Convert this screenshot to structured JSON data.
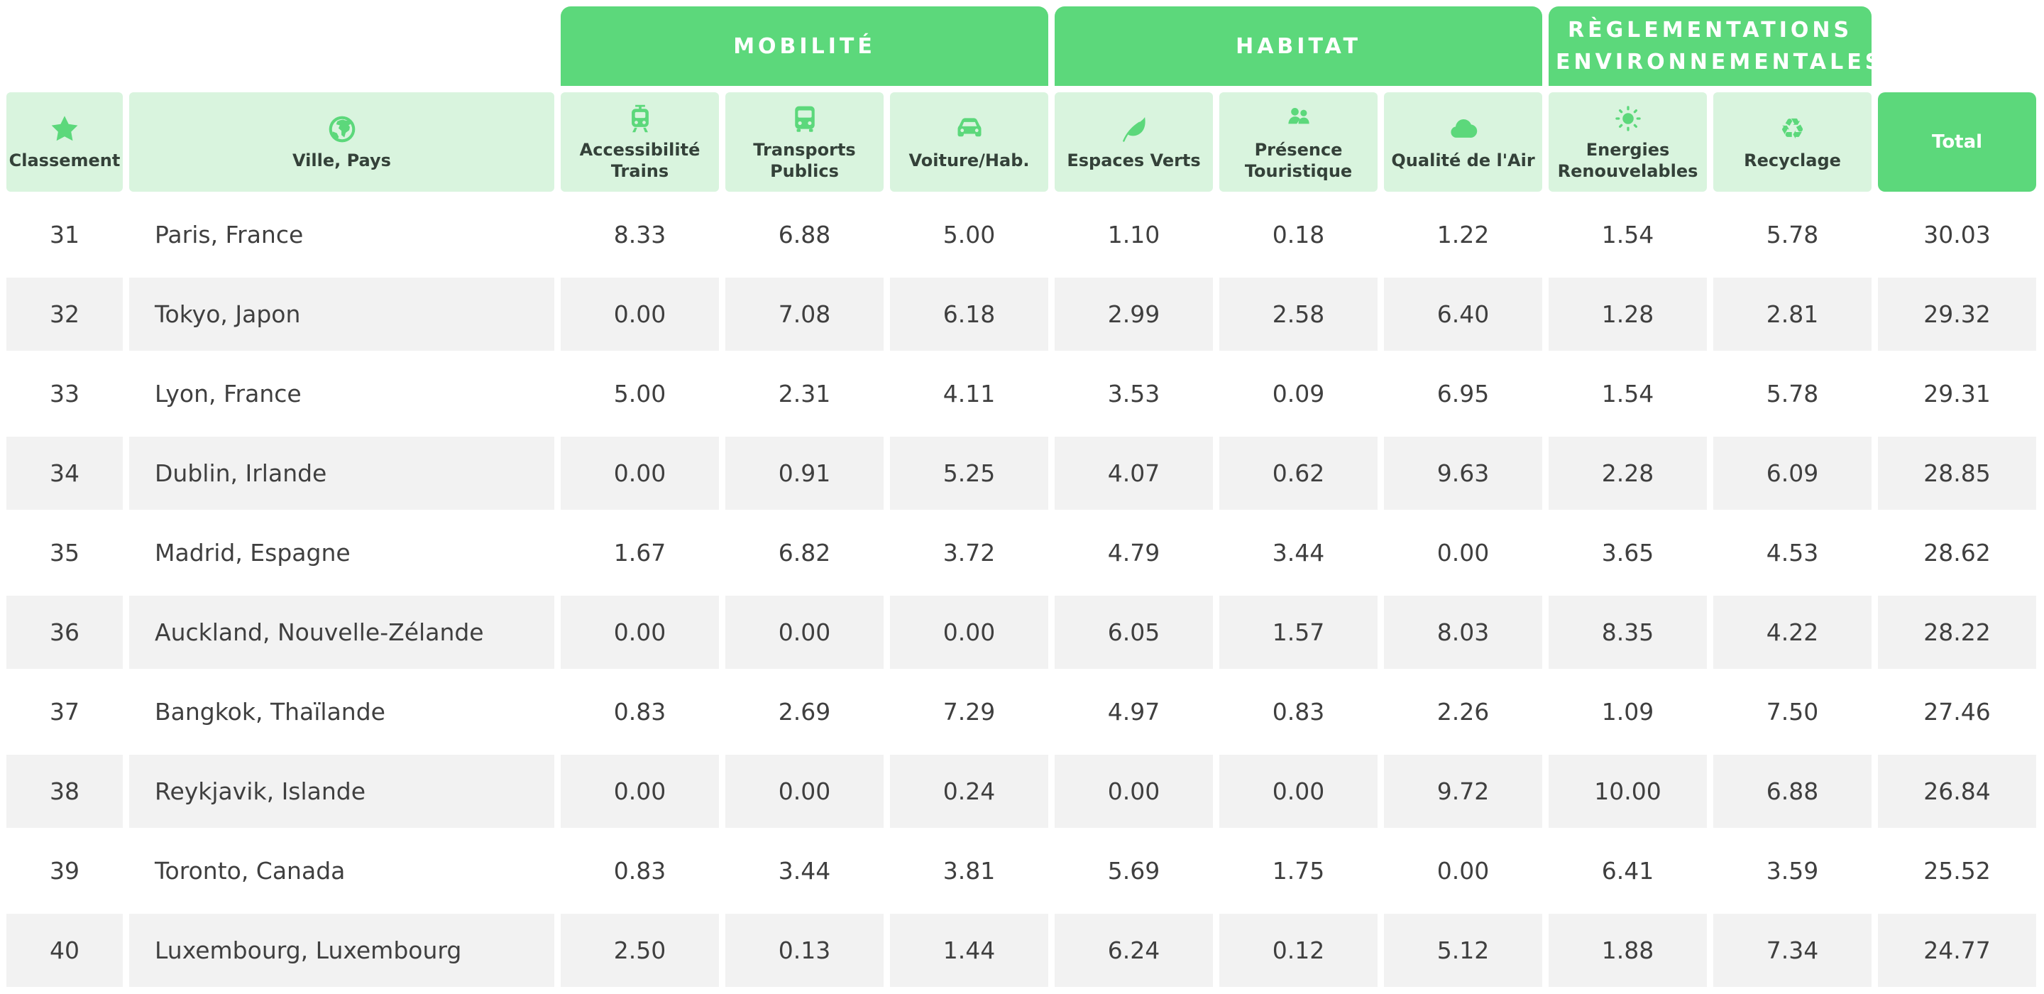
{
  "table": {
    "group_headers": [
      {
        "label": "MOBILITÉ",
        "span": 3,
        "name": "group-header-mobilite"
      },
      {
        "label": "HABITAT",
        "span": 3,
        "name": "group-header-habitat"
      },
      {
        "label": "RÈGLEMENTATIONS ENVIRONNEMENTALES",
        "span": 2,
        "name": "group-header-reglementations-environnementales"
      }
    ],
    "columns": [
      {
        "id": "classement",
        "label": "Classement",
        "icon": "star-icon"
      },
      {
        "id": "ville-pays",
        "label": "Ville, Pays",
        "icon": "globe-icon"
      },
      {
        "id": "accessibilite-trains",
        "label": "Accessibilité Trains",
        "icon": "tram-icon"
      },
      {
        "id": "transports-publics",
        "label": "Transports Publics",
        "icon": "bus-icon"
      },
      {
        "id": "voiture-hab",
        "label": "Voiture/Hab.",
        "icon": "car-icon"
      },
      {
        "id": "espaces-verts",
        "label": "Espaces Verts",
        "icon": "leaf-icon"
      },
      {
        "id": "presence-touristique",
        "label": "Présence Touristique",
        "icon": "people-icon"
      },
      {
        "id": "qualite-air",
        "label": "Qualité de l'Air",
        "icon": "cloud-icon"
      },
      {
        "id": "energies-renouvelables",
        "label": "Energies Renouvelables",
        "icon": "sun-icon"
      },
      {
        "id": "recyclage",
        "label": "Recyclage",
        "icon": "recycle-icon"
      },
      {
        "id": "total",
        "label": "Total",
        "icon": null
      }
    ],
    "rows": [
      {
        "rank": "31",
        "city": "Paris, France",
        "values": [
          "8.33",
          "6.88",
          "5.00",
          "1.10",
          "0.18",
          "1.22",
          "1.54",
          "5.78"
        ],
        "total": "30.03"
      },
      {
        "rank": "32",
        "city": "Tokyo, Japon",
        "values": [
          "0.00",
          "7.08",
          "6.18",
          "2.99",
          "2.58",
          "6.40",
          "1.28",
          "2.81"
        ],
        "total": "29.32"
      },
      {
        "rank": "33",
        "city": "Lyon, France",
        "values": [
          "5.00",
          "2.31",
          "4.11",
          "3.53",
          "0.09",
          "6.95",
          "1.54",
          "5.78"
        ],
        "total": "29.31"
      },
      {
        "rank": "34",
        "city": "Dublin, Irlande",
        "values": [
          "0.00",
          "0.91",
          "5.25",
          "4.07",
          "0.62",
          "9.63",
          "2.28",
          "6.09"
        ],
        "total": "28.85"
      },
      {
        "rank": "35",
        "city": "Madrid, Espagne",
        "values": [
          "1.67",
          "6.82",
          "3.72",
          "4.79",
          "3.44",
          "0.00",
          "3.65",
          "4.53"
        ],
        "total": "28.62"
      },
      {
        "rank": "36",
        "city": "Auckland, Nouvelle-Zélande",
        "values": [
          "0.00",
          "0.00",
          "0.00",
          "6.05",
          "1.57",
          "8.03",
          "8.35",
          "4.22"
        ],
        "total": "28.22"
      },
      {
        "rank": "37",
        "city": "Bangkok, Thaïlande",
        "values": [
          "0.83",
          "2.69",
          "7.29",
          "4.97",
          "0.83",
          "2.26",
          "1.09",
          "7.50"
        ],
        "total": "27.46"
      },
      {
        "rank": "38",
        "city": "Reykjavik, Islande",
        "values": [
          "0.00",
          "0.00",
          "0.24",
          "0.00",
          "0.00",
          "9.72",
          "10.00",
          "6.88"
        ],
        "total": "26.84"
      },
      {
        "rank": "39",
        "city": "Toronto, Canada",
        "values": [
          "0.83",
          "3.44",
          "3.81",
          "5.69",
          "1.75",
          "0.00",
          "6.41",
          "3.59"
        ],
        "total": "25.52"
      },
      {
        "rank": "40",
        "city": "Luxembourg, Luxembourg",
        "values": [
          "2.50",
          "0.13",
          "1.44",
          "6.24",
          "0.12",
          "5.12",
          "1.88",
          "7.34"
        ],
        "total": "24.77"
      }
    ],
    "colors": {
      "accent_green": "#5cd87b",
      "light_green": "#d9f4de",
      "row_stripe": "#f2f2f2",
      "header_text": "#344139",
      "data_text": "#3f3f3f",
      "header_label_text": "#ffffff"
    }
  }
}
